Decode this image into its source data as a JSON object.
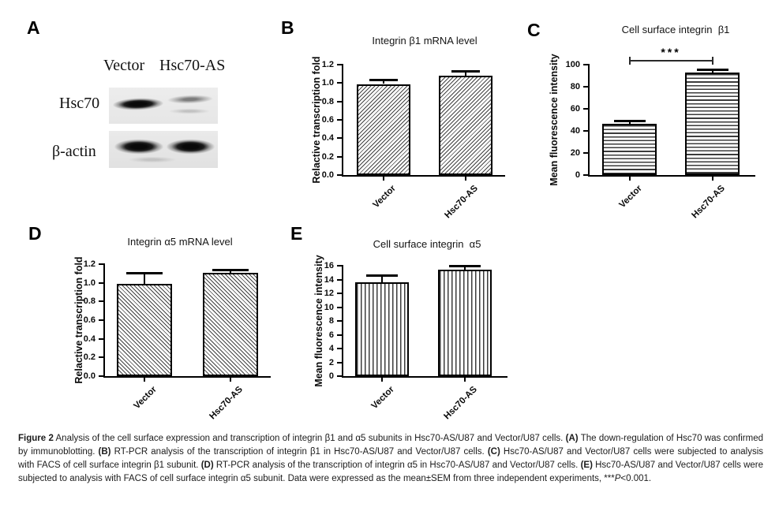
{
  "panel_a": {
    "letter": "A",
    "lane_labels": [
      "Vector",
      "Hsc70-AS"
    ],
    "band_rows": [
      "Hsc70",
      "β-actin"
    ]
  },
  "chart_data": [
    {
      "panel": "B",
      "type": "bar",
      "title": "Integrin β1 mRNA level",
      "ylabel": "Relactive transcription fold",
      "categories": [
        "Vector",
        "Hsc70-AS"
      ],
      "values": [
        0.99,
        1.08
      ],
      "errors": [
        0.05,
        0.05
      ],
      "ylim": [
        0,
        1.2
      ],
      "ytick_labels": [
        "0.0",
        "0.2",
        "0.4",
        "0.6",
        "0.8",
        "1.0",
        "1.2"
      ],
      "hatch": "diagonal-up",
      "grid": "off",
      "significance": null
    },
    {
      "panel": "C",
      "type": "bar",
      "title": "Cell surface integrin  β1",
      "ylabel": "Mean fluorescence intensity",
      "categories": [
        "Vector",
        "Hsc70-AS"
      ],
      "values": [
        46.5,
        93
      ],
      "errors": [
        2.5,
        3
      ],
      "ylim": [
        0,
        100
      ],
      "ytick_labels": [
        "0",
        "20",
        "40",
        "60",
        "80",
        "100"
      ],
      "hatch": "horizontal",
      "grid": "off",
      "significance": {
        "label": "***",
        "between": [
          0,
          1
        ]
      }
    },
    {
      "panel": "D",
      "type": "bar",
      "title": "Integrin α5 mRNA level",
      "ylabel": "Relactive transcription fold",
      "categories": [
        "Vector",
        "Hsc70-AS"
      ],
      "values": [
        0.99,
        1.11
      ],
      "errors": [
        0.12,
        0.03
      ],
      "ylim": [
        0,
        1.2
      ],
      "ytick_labels": [
        "0.0",
        "0.2",
        "0.4",
        "0.6",
        "0.8",
        "1.0",
        "1.2"
      ],
      "hatch": "diagonal-down",
      "grid": "off",
      "significance": null
    },
    {
      "panel": "E",
      "type": "bar",
      "title": "Cell surface integrin  α5",
      "ylabel": "Mean fluorescence intensity",
      "categories": [
        "Vector",
        "Hsc70-AS"
      ],
      "values": [
        13.6,
        15.4
      ],
      "errors": [
        1.0,
        0.55
      ],
      "ylim": [
        0,
        16
      ],
      "ytick_labels": [
        "0",
        "2",
        "4",
        "6",
        "8",
        "10",
        "12",
        "14",
        "16"
      ],
      "hatch": "vertical",
      "grid": "off",
      "significance": null
    }
  ],
  "caption": {
    "segments": [
      {
        "t": "Figure 2",
        "b": true
      },
      {
        "t": " Analysis of the cell surface expression and transcription of integrin β1 and α5 subunits in Hsc70-AS/U87 and Vector/U87 cells. ",
        "b": false
      },
      {
        "t": "(A)",
        "b": true
      },
      {
        "t": " The down-regulation of Hsc70 was confirmed by immunoblotting. ",
        "b": false
      },
      {
        "t": "(B)",
        "b": true
      },
      {
        "t": " RT-PCR analysis of the transcription of integrin β1 in Hsc70-AS/U87 and Vector/U87 cells. ",
        "b": false
      },
      {
        "t": "(C)",
        "b": true
      },
      {
        "t": " Hsc70-AS/U87 and Vector/U87 cells were subjected to analysis with FACS of cell surface integrin β1 subunit. ",
        "b": false
      },
      {
        "t": "(D)",
        "b": true
      },
      {
        "t": " RT-PCR analysis of the transcription of integrin α5 in Hsc70-AS/U87 and Vector/U87 cells. ",
        "b": false
      },
      {
        "t": "(E)",
        "b": true
      },
      {
        "t": " Hsc70-AS/U87 and Vector/U87 cells were subjected to analysis with FACS of cell surface integrin α5 subunit. Data were expressed as the mean±SEM from three independent experiments, ***",
        "b": false
      },
      {
        "t": "P",
        "b": false,
        "i": true
      },
      {
        "t": "<0.001.",
        "b": false
      }
    ]
  }
}
